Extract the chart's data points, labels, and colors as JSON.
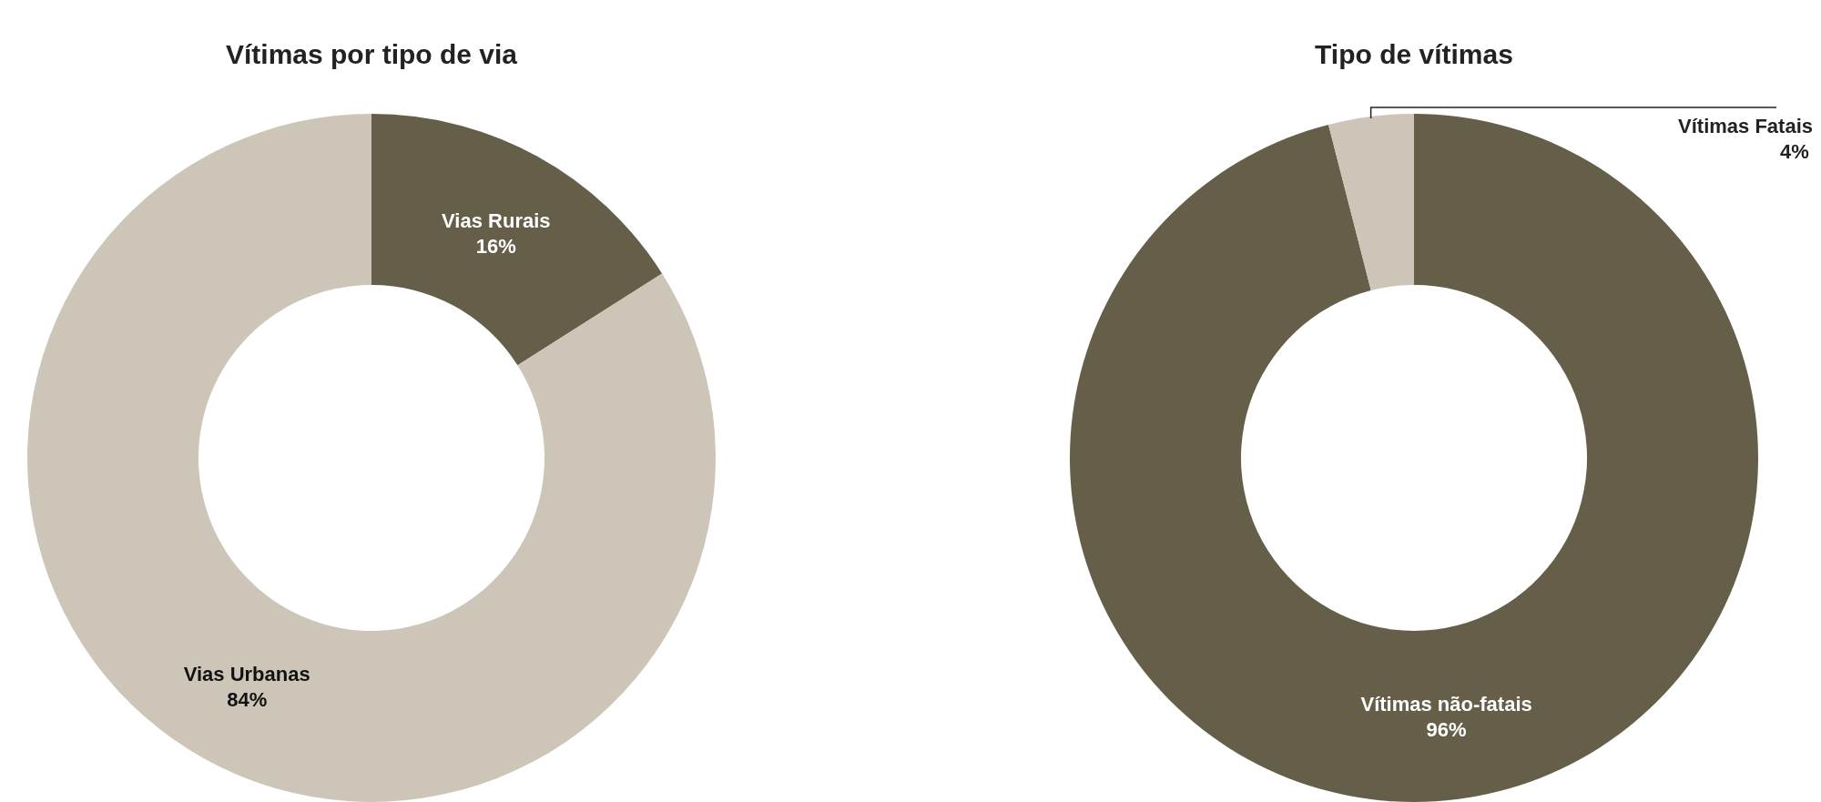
{
  "chart_data": [
    {
      "type": "donut",
      "title": "Vítimas por tipo de via",
      "categories": [
        "Vias Rurais",
        "Vias Urbanas"
      ],
      "values": [
        16,
        84
      ],
      "colors": [
        "#655e48",
        "#cdc5b7"
      ],
      "value_labels": [
        "16%",
        "84%"
      ]
    },
    {
      "type": "donut",
      "title": "Tipo de vítimas",
      "categories": [
        "Vítimas não-fatais",
        "Vítimas Fatais"
      ],
      "values": [
        96,
        4
      ],
      "colors": [
        "#655e48",
        "#cdc5b7"
      ],
      "value_labels": [
        "96%",
        "4%"
      ]
    }
  ]
}
